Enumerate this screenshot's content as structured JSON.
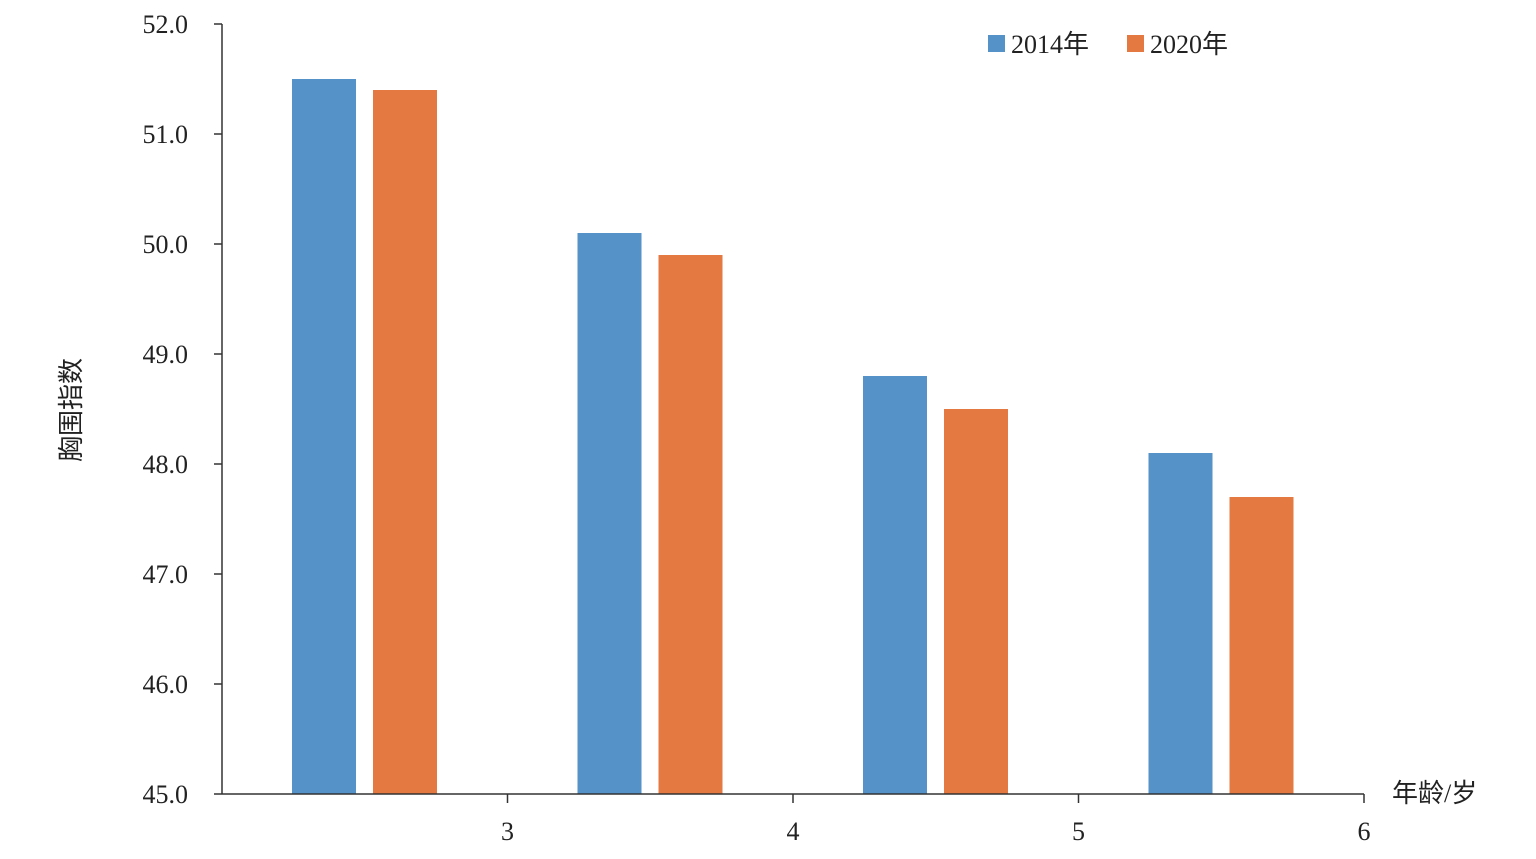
{
  "chart_data": {
    "type": "bar",
    "ylabel": "胸围指数",
    "xlabel": "年龄/岁",
    "ylim": [
      45.0,
      52.0
    ],
    "y_ticks": [
      "45.0",
      "46.0",
      "47.0",
      "48.0",
      "49.0",
      "50.0",
      "51.0",
      "52.0"
    ],
    "x_ticks": [
      "3",
      "4",
      "5",
      "6"
    ],
    "categories": [
      "3",
      "4",
      "5",
      "6"
    ],
    "series": [
      {
        "name": "2014年",
        "color": "#5592C7",
        "values": [
          51.5,
          50.1,
          48.8,
          48.1
        ]
      },
      {
        "name": "2020年",
        "color": "#E47A42",
        "values": [
          51.4,
          49.9,
          48.5,
          47.7
        ]
      }
    ],
    "legend_position": "top-right",
    "grid": false
  }
}
